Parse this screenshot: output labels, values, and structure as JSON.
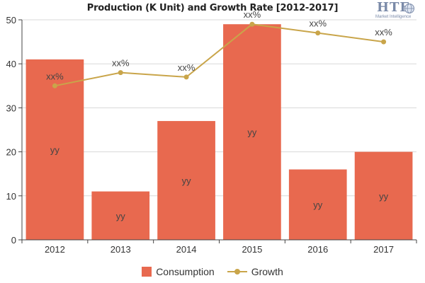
{
  "chart_data": {
    "type": "bar",
    "title": "Production (K Unit) and Growth Rate [2012-2017]",
    "categories": [
      "2012",
      "2013",
      "2014",
      "2015",
      "2016",
      "2017"
    ],
    "ylim": [
      0,
      50
    ],
    "yticks": [
      0,
      10,
      20,
      30,
      40,
      50
    ],
    "secondary_ylim": [
      0,
      50
    ],
    "series": [
      {
        "name": "Consumption",
        "type": "bar",
        "color": "#e8694f",
        "values": [
          41,
          11,
          27,
          49,
          16,
          20
        ],
        "labels": [
          "yy",
          "yy",
          "yy",
          "yy",
          "yy",
          "yy"
        ]
      },
      {
        "name": "Growth",
        "type": "line",
        "color": "#c9a54a",
        "values": [
          35,
          38,
          37,
          49,
          47,
          45
        ],
        "labels": [
          "xx%",
          "xx%",
          "xx%",
          "xx%",
          "xx%",
          "xx%"
        ]
      }
    ],
    "grid": "horizontal",
    "legend_position": "bottom-center"
  },
  "logo": {
    "main": "HTF",
    "sub": "Market Intelligence"
  }
}
